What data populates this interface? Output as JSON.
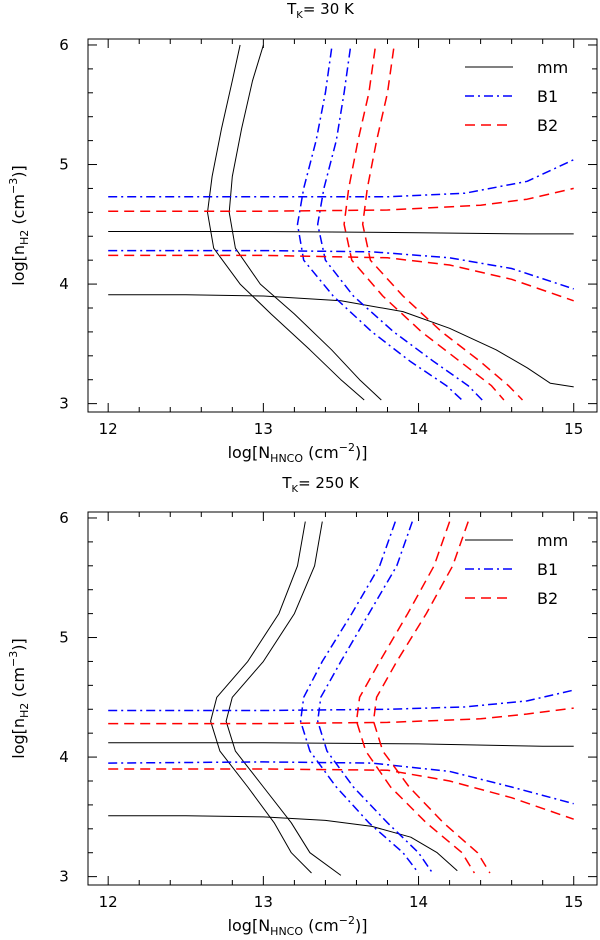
{
  "chart_data": [
    {
      "type": "line",
      "title": "T",
      "title_sub": "K",
      "title_value": "=  30  K",
      "xlabel": {
        "prefix": "log[N",
        "sub": "HNCO",
        "mid": " (cm",
        "sup": "−2",
        "suffix": ")]"
      },
      "ylabel": {
        "prefix": "log[n",
        "sub": "H2",
        "mid": " (cm",
        "sup": "−3",
        "suffix": ")]"
      },
      "xlim": [
        11.87,
        15.15
      ],
      "ylim": [
        2.93,
        6.05
      ],
      "xticks": [
        "12",
        "13",
        "14",
        "15"
      ],
      "yticks": [
        "3",
        "4",
        "5",
        "6"
      ],
      "legend": {
        "position": "top-right",
        "entries": [
          {
            "label": "mm",
            "color": "#000000",
            "style": "solid"
          },
          {
            "label": "B1",
            "color": "#0000ff",
            "style": "dashdot"
          },
          {
            "label": "B2",
            "color": "#ff0000",
            "style": "dashed"
          }
        ]
      },
      "series": [
        {
          "name": "mm",
          "color": "#000000",
          "style": "solid",
          "lines": [
            [
              [
                12.0,
                3.91
              ],
              [
                12.5,
                3.91
              ],
              [
                13.0,
                3.9
              ],
              [
                13.5,
                3.86
              ],
              [
                13.9,
                3.77
              ],
              [
                14.2,
                3.63
              ],
              [
                14.5,
                3.45
              ],
              [
                14.7,
                3.3
              ],
              [
                14.85,
                3.17
              ],
              [
                15.0,
                3.14
              ]
            ],
            [
              [
                12.0,
                4.44
              ],
              [
                13.0,
                4.44
              ],
              [
                14.0,
                4.43
              ],
              [
                14.7,
                4.42
              ],
              [
                15.0,
                4.42
              ]
            ],
            [
              [
                12.85,
                6.0
              ],
              [
                12.8,
                5.7
              ],
              [
                12.73,
                5.3
              ],
              [
                12.67,
                4.9
              ],
              [
                12.64,
                4.6
              ],
              [
                12.68,
                4.3
              ],
              [
                12.85,
                4.0
              ],
              [
                13.05,
                3.75
              ],
              [
                13.3,
                3.45
              ],
              [
                13.5,
                3.2
              ],
              [
                13.65,
                3.03
              ]
            ],
            [
              [
                13.0,
                6.0
              ],
              [
                12.93,
                5.7
              ],
              [
                12.86,
                5.3
              ],
              [
                12.8,
                4.9
              ],
              [
                12.78,
                4.6
              ],
              [
                12.82,
                4.3
              ],
              [
                12.98,
                4.0
              ],
              [
                13.2,
                3.75
              ],
              [
                13.44,
                3.45
              ],
              [
                13.62,
                3.2
              ],
              [
                13.76,
                3.03
              ]
            ]
          ]
        },
        {
          "name": "B1",
          "color": "#0000ff",
          "style": "dashdot",
          "lines": [
            [
              [
                12.0,
                4.73
              ],
              [
                13.0,
                4.73
              ],
              [
                13.8,
                4.73
              ],
              [
                14.3,
                4.76
              ],
              [
                14.7,
                4.86
              ],
              [
                15.0,
                5.04
              ]
            ],
            [
              [
                12.0,
                4.28
              ],
              [
                13.0,
                4.28
              ],
              [
                13.7,
                4.27
              ],
              [
                14.2,
                4.22
              ],
              [
                14.6,
                4.13
              ],
              [
                15.0,
                3.96
              ]
            ],
            [
              [
                13.44,
                5.97
              ],
              [
                13.4,
                5.6
              ],
              [
                13.34,
                5.2
              ],
              [
                13.26,
                4.8
              ],
              [
                13.22,
                4.5
              ],
              [
                13.26,
                4.2
              ],
              [
                13.45,
                3.9
              ],
              [
                13.7,
                3.6
              ],
              [
                13.95,
                3.35
              ],
              [
                14.18,
                3.15
              ],
              [
                14.28,
                3.03
              ]
            ],
            [
              [
                13.56,
                5.97
              ],
              [
                13.52,
                5.6
              ],
              [
                13.47,
                5.2
              ],
              [
                13.39,
                4.8
              ],
              [
                13.35,
                4.5
              ],
              [
                13.4,
                4.2
              ],
              [
                13.58,
                3.9
              ],
              [
                13.84,
                3.6
              ],
              [
                14.1,
                3.35
              ],
              [
                14.32,
                3.15
              ],
              [
                14.41,
                3.03
              ]
            ]
          ]
        },
        {
          "name": "B2",
          "color": "#ff0000",
          "style": "dashed",
          "lines": [
            [
              [
                12.0,
                4.61
              ],
              [
                13.0,
                4.61
              ],
              [
                13.8,
                4.62
              ],
              [
                14.4,
                4.66
              ],
              [
                14.7,
                4.71
              ],
              [
                15.0,
                4.8
              ]
            ],
            [
              [
                12.0,
                4.24
              ],
              [
                13.0,
                4.24
              ],
              [
                13.8,
                4.22
              ],
              [
                14.2,
                4.16
              ],
              [
                14.6,
                4.04
              ],
              [
                15.0,
                3.86
              ]
            ],
            [
              [
                13.72,
                5.97
              ],
              [
                13.68,
                5.6
              ],
              [
                13.61,
                5.2
              ],
              [
                13.55,
                4.8
              ],
              [
                13.52,
                4.5
              ],
              [
                13.57,
                4.2
              ],
              [
                13.77,
                3.9
              ],
              [
                14.02,
                3.6
              ],
              [
                14.27,
                3.35
              ],
              [
                14.47,
                3.15
              ],
              [
                14.55,
                3.03
              ]
            ],
            [
              [
                13.84,
                5.97
              ],
              [
                13.8,
                5.6
              ],
              [
                13.73,
                5.2
              ],
              [
                13.67,
                4.8
              ],
              [
                13.64,
                4.5
              ],
              [
                13.69,
                4.2
              ],
              [
                13.9,
                3.9
              ],
              [
                14.15,
                3.6
              ],
              [
                14.4,
                3.35
              ],
              [
                14.58,
                3.15
              ],
              [
                14.67,
                3.03
              ]
            ]
          ]
        }
      ]
    },
    {
      "type": "line",
      "title": "T",
      "title_sub": "K",
      "title_value": "=  250  K",
      "xlabel": {
        "prefix": "log[N",
        "sub": "HNCO",
        "mid": " (cm",
        "sup": "−2",
        "suffix": ")]"
      },
      "ylabel": {
        "prefix": "log[n",
        "sub": "H2",
        "mid": " (cm",
        "sup": "−3",
        "suffix": ")]"
      },
      "xlim": [
        11.87,
        15.15
      ],
      "ylim": [
        2.93,
        6.05
      ],
      "xticks": [
        "12",
        "13",
        "14",
        "15"
      ],
      "yticks": [
        "3",
        "4",
        "5",
        "6"
      ],
      "legend": {
        "position": "top-right",
        "entries": [
          {
            "label": "mm",
            "color": "#000000",
            "style": "solid"
          },
          {
            "label": "B1",
            "color": "#0000ff",
            "style": "dashdot"
          },
          {
            "label": "B2",
            "color": "#ff0000",
            "style": "dashed"
          }
        ]
      },
      "series": [
        {
          "name": "mm",
          "color": "#000000",
          "style": "solid",
          "lines": [
            [
              [
                12.0,
                3.51
              ],
              [
                12.5,
                3.51
              ],
              [
                13.0,
                3.5
              ],
              [
                13.4,
                3.47
              ],
              [
                13.7,
                3.42
              ],
              [
                13.95,
                3.33
              ],
              [
                14.12,
                3.2
              ],
              [
                14.25,
                3.05
              ]
            ],
            [
              [
                12.0,
                4.12
              ],
              [
                13.0,
                4.12
              ],
              [
                14.0,
                4.11
              ],
              [
                14.8,
                4.09
              ],
              [
                15.0,
                4.09
              ]
            ],
            [
              [
                13.27,
                5.97
              ],
              [
                13.22,
                5.6
              ],
              [
                13.1,
                5.2
              ],
              [
                12.9,
                4.8
              ],
              [
                12.7,
                4.5
              ],
              [
                12.66,
                4.3
              ],
              [
                12.72,
                4.05
              ],
              [
                12.9,
                3.75
              ],
              [
                13.07,
                3.45
              ],
              [
                13.18,
                3.2
              ],
              [
                13.31,
                3.03
              ]
            ],
            [
              [
                13.38,
                5.97
              ],
              [
                13.33,
                5.6
              ],
              [
                13.2,
                5.2
              ],
              [
                13.0,
                4.8
              ],
              [
                12.8,
                4.5
              ],
              [
                12.76,
                4.3
              ],
              [
                12.82,
                4.05
              ],
              [
                13.0,
                3.75
              ],
              [
                13.18,
                3.45
              ],
              [
                13.3,
                3.2
              ],
              [
                13.5,
                3.01
              ]
            ]
          ]
        },
        {
          "name": "B1",
          "color": "#0000ff",
          "style": "dashdot",
          "lines": [
            [
              [
                12.0,
                4.39
              ],
              [
                13.0,
                4.39
              ],
              [
                13.8,
                4.4
              ],
              [
                14.3,
                4.42
              ],
              [
                14.7,
                4.47
              ],
              [
                15.0,
                4.56
              ]
            ],
            [
              [
                12.0,
                3.95
              ],
              [
                13.0,
                3.96
              ],
              [
                13.7,
                3.95
              ],
              [
                14.2,
                3.88
              ],
              [
                14.6,
                3.75
              ],
              [
                15.0,
                3.61
              ]
            ],
            [
              [
                13.85,
                5.97
              ],
              [
                13.75,
                5.6
              ],
              [
                13.57,
                5.2
              ],
              [
                13.38,
                4.8
              ],
              [
                13.26,
                4.5
              ],
              [
                13.24,
                4.3
              ],
              [
                13.3,
                4.05
              ],
              [
                13.47,
                3.75
              ],
              [
                13.68,
                3.45
              ],
              [
                13.9,
                3.2
              ],
              [
                14.0,
                3.03
              ]
            ],
            [
              [
                13.96,
                5.97
              ],
              [
                13.86,
                5.6
              ],
              [
                13.68,
                5.2
              ],
              [
                13.5,
                4.8
              ],
              [
                13.37,
                4.5
              ],
              [
                13.35,
                4.3
              ],
              [
                13.41,
                4.05
              ],
              [
                13.58,
                3.75
              ],
              [
                13.8,
                3.45
              ],
              [
                14.0,
                3.2
              ],
              [
                14.09,
                3.03
              ]
            ]
          ]
        },
        {
          "name": "B2",
          "color": "#ff0000",
          "style": "dashed",
          "lines": [
            [
              [
                12.0,
                4.28
              ],
              [
                13.0,
                4.28
              ],
              [
                13.8,
                4.29
              ],
              [
                14.4,
                4.32
              ],
              [
                14.7,
                4.36
              ],
              [
                15.0,
                4.41
              ]
            ],
            [
              [
                12.0,
                3.9
              ],
              [
                13.0,
                3.9
              ],
              [
                13.8,
                3.89
              ],
              [
                14.2,
                3.8
              ],
              [
                14.6,
                3.66
              ],
              [
                15.0,
                3.48
              ]
            ],
            [
              [
                14.2,
                5.97
              ],
              [
                14.1,
                5.6
              ],
              [
                13.93,
                5.2
              ],
              [
                13.75,
                4.8
              ],
              [
                13.62,
                4.5
              ],
              [
                13.6,
                4.3
              ],
              [
                13.66,
                4.05
              ],
              [
                13.82,
                3.75
              ],
              [
                14.05,
                3.45
              ],
              [
                14.28,
                3.2
              ],
              [
                14.36,
                3.03
              ]
            ],
            [
              [
                14.32,
                5.97
              ],
              [
                14.22,
                5.6
              ],
              [
                14.05,
                5.2
              ],
              [
                13.86,
                4.8
              ],
              [
                13.73,
                4.5
              ],
              [
                13.71,
                4.3
              ],
              [
                13.77,
                4.05
              ],
              [
                13.94,
                3.75
              ],
              [
                14.16,
                3.45
              ],
              [
                14.38,
                3.2
              ],
              [
                14.46,
                3.03
              ]
            ]
          ]
        }
      ]
    }
  ]
}
